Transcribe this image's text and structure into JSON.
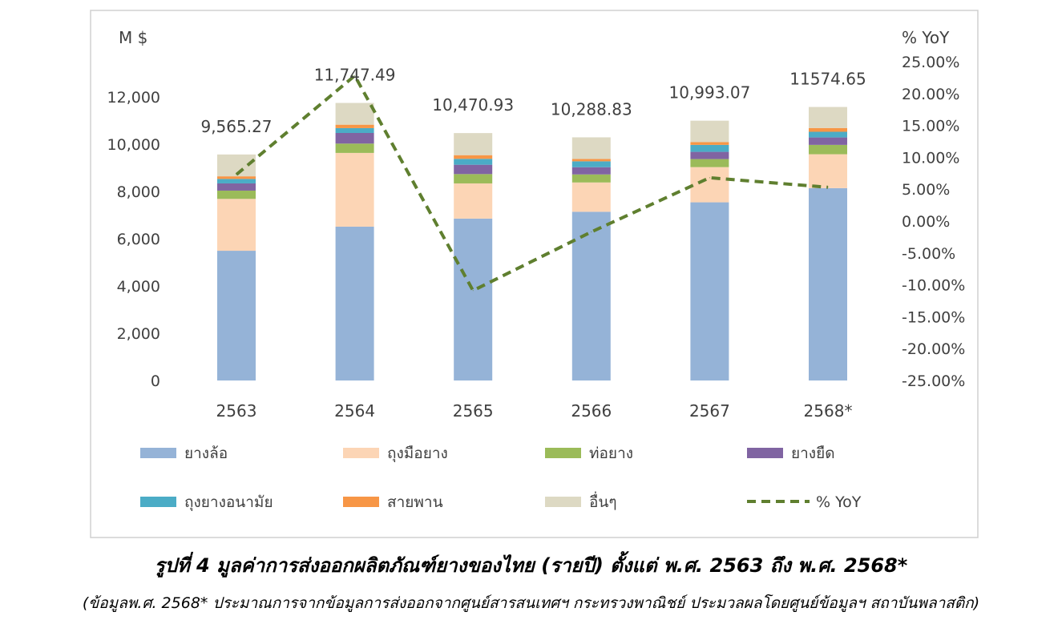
{
  "chart_data": {
    "type": "bar",
    "stacked": true,
    "categories": [
      "2563",
      "2564",
      "2565",
      "2566",
      "2567",
      "2568*"
    ],
    "ylabel": "M $",
    "y2label": "% YoY",
    "ylim": [
      0,
      12000
    ],
    "y2lim": [
      -25,
      25
    ],
    "yticks": [
      "0",
      "2,000",
      "4,000",
      "6,000",
      "8,000",
      "10,000",
      "12,000"
    ],
    "ytick_values": [
      0,
      2000,
      4000,
      6000,
      8000,
      10000,
      12000
    ],
    "y2ticks": [
      "-25.00%",
      "-20.00%",
      "-15.00%",
      "-10.00%",
      "-5.00%",
      "0.00%",
      "5.00%",
      "10.00%",
      "15.00%",
      "20.00%",
      "25.00%"
    ],
    "y2tick_values": [
      -25,
      -20,
      -15,
      -10,
      -5,
      0,
      5,
      10,
      15,
      20,
      25
    ],
    "totals": [
      "9,565.27",
      "11,747.49",
      "10,470.93",
      "10,288.83",
      "10,993.07",
      "11574.65"
    ],
    "series": [
      {
        "name": "ยางล้อ",
        "color": "#95b3d7",
        "values": [
          5490,
          6510,
          6850,
          7140,
          7540,
          8140
        ]
      },
      {
        "name": "ถุงมือยาง",
        "color": "#fcd5b5",
        "values": [
          2195,
          3120,
          1490,
          1240,
          1490,
          1435
        ]
      },
      {
        "name": "ท่อยาง",
        "color": "#9bbb59",
        "values": [
          350,
          395,
          395,
          340,
          340,
          395
        ]
      },
      {
        "name": "ยางยืด",
        "color": "#8064a2",
        "values": [
          305,
          450,
          395,
          305,
          305,
          315
        ]
      },
      {
        "name": "ถุงยางอนามัย",
        "color": "#4bacc6",
        "values": [
          190,
          205,
          250,
          250,
          295,
          240
        ]
      },
      {
        "name": "สายพาน",
        "color": "#f79646",
        "values": [
          110,
          145,
          155,
          100,
          115,
          160
        ]
      },
      {
        "name": "อื่นๆ",
        "color": "#ddd9c3",
        "values": [
          925,
          920,
          935,
          915,
          910,
          890
        ]
      }
    ],
    "line": {
      "name": "% YoY",
      "color": "#5f7f2f",
      "axis": "right",
      "values": [
        7.3,
        22.8,
        -10.9,
        -1.7,
        6.8,
        5.3
      ]
    },
    "legend": "bottom",
    "grid": false
  },
  "caption": {
    "title": "รูปที่ 4 มูลค่าการส่งออกผลิตภัณฑ์ยางของไทย (รายปี) ตั้งแต่ พ.ศ. 2563 ถึง พ.ศ. 2568*",
    "note": "(ข้อมูลพ.ศ. 2568* ประมาณการจากข้อมูลการส่งออกจากศูนย์สารสนเทศฯ กระทรวงพาณิชย์ ประมวลผลโดยศูนย์ข้อมูลฯ สถาบันพลาสติก)"
  }
}
